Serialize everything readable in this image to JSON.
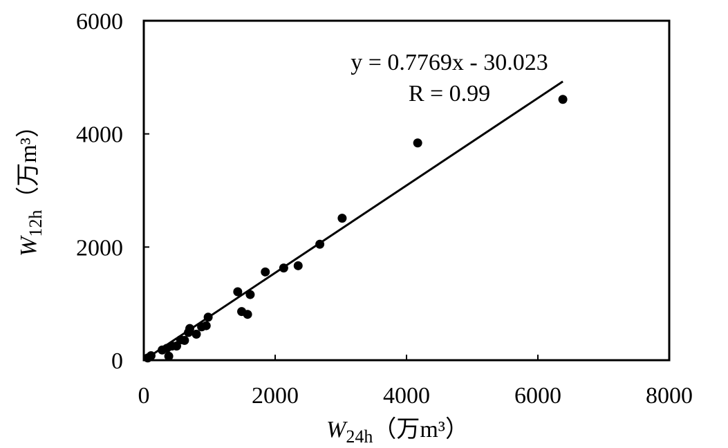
{
  "chart_data": {
    "type": "scatter",
    "title": "",
    "xlabel": {
      "symbol": "W",
      "subscript": "24h",
      "unit": "（万m³）"
    },
    "ylabel": {
      "symbol": "W",
      "subscript": "12h",
      "unit": "（万m³）"
    },
    "xlim": [
      0,
      8000
    ],
    "ylim": [
      0,
      6000
    ],
    "xticks": [
      "0",
      "2000",
      "4000",
      "6000",
      "8000"
    ],
    "yticks": [
      "0",
      "2000",
      "4000",
      "6000"
    ],
    "grid": false,
    "legend": "none",
    "points": [
      {
        "x": 60,
        "y": 40
      },
      {
        "x": 110,
        "y": 80
      },
      {
        "x": 280,
        "y": 180
      },
      {
        "x": 350,
        "y": 210
      },
      {
        "x": 380,
        "y": 70
      },
      {
        "x": 430,
        "y": 250
      },
      {
        "x": 500,
        "y": 250
      },
      {
        "x": 560,
        "y": 360
      },
      {
        "x": 620,
        "y": 350
      },
      {
        "x": 680,
        "y": 490
      },
      {
        "x": 700,
        "y": 560
      },
      {
        "x": 800,
        "y": 460
      },
      {
        "x": 880,
        "y": 590
      },
      {
        "x": 950,
        "y": 610
      },
      {
        "x": 980,
        "y": 760
      },
      {
        "x": 1430,
        "y": 1210
      },
      {
        "x": 1490,
        "y": 860
      },
      {
        "x": 1580,
        "y": 810
      },
      {
        "x": 1620,
        "y": 1160
      },
      {
        "x": 1850,
        "y": 1560
      },
      {
        "x": 2130,
        "y": 1630
      },
      {
        "x": 2350,
        "y": 1670
      },
      {
        "x": 2680,
        "y": 2050
      },
      {
        "x": 3020,
        "y": 2510
      },
      {
        "x": 4170,
        "y": 3840
      },
      {
        "x": 6380,
        "y": 4610
      }
    ],
    "trendline": {
      "slope": 0.7769,
      "intercept": -30.023,
      "x_range": [
        0,
        6380
      ],
      "equation": "y = 0.7769x - 30.023",
      "r_text": "R = 0.99"
    },
    "colors": {
      "marker": "#000000",
      "line": "#000000",
      "axis": "#000000"
    }
  }
}
